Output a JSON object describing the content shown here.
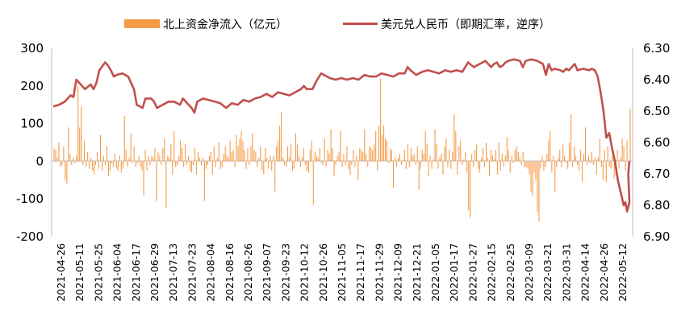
{
  "chart_data": {
    "type": "bar+line",
    "legend": {
      "position": "top",
      "items": [
        {
          "label": "北上资金净流入（亿元）",
          "color": "#F59A45",
          "kind": "bar"
        },
        {
          "label": "美元兑人民币（即期汇率，逆序）",
          "color": "#C0504D",
          "kind": "line"
        }
      ]
    },
    "y_left": {
      "ticks": [
        "300",
        "200",
        "100",
        "0",
        "-100",
        "-200"
      ],
      "range": [
        -200,
        300
      ]
    },
    "y_right": {
      "ticks": [
        "6.30",
        "6.40",
        "6.50",
        "6.60",
        "6.70",
        "6.80",
        "6.90"
      ],
      "range": [
        6.3,
        6.9
      ],
      "inverted": true
    },
    "x_tick_labels": [
      "2021-04-26",
      "2021-05-11",
      "2021-05-25",
      "2021-06-04",
      "2021-06-17",
      "2021-06-29",
      "2021-07-13",
      "2021-07-23",
      "2021-08-04",
      "2021-08-16",
      "2021-08-26",
      "2021-09-07",
      "2021-09-23",
      "2021-10-12",
      "2021-10-26",
      "2021-11-05",
      "2021-11-17",
      "2021-11-29",
      "2021-12-09",
      "2021-12-21",
      "2022-01-05",
      "2022-01-17",
      "2022-01-27",
      "2022-02-15",
      "2022-02-25",
      "2022-03-09",
      "2022-03-21",
      "2022-03-31",
      "2022-04-14",
      "2022-04-26",
      "2022-05-12"
    ],
    "bar_colors": {
      "positive": "#F59A45",
      "negative": "#F59A45"
    },
    "line_color": "#C0504D",
    "bars_net_inflow_100m_cny": [
      35,
      30,
      10,
      50,
      -15,
      -10,
      40,
      -50,
      -60,
      90,
      20,
      -10,
      10,
      -5,
      15,
      200,
      90,
      145,
      -10,
      55,
      -15,
      25,
      -20,
      10,
      -25,
      -35,
      -10,
      25,
      -20,
      70,
      -25,
      15,
      -10,
      40,
      -40,
      -25,
      -5,
      -15,
      20,
      -20,
      -25,
      15,
      -30,
      -20,
      120,
      30,
      -15,
      10,
      75,
      -5,
      40,
      -15,
      -5,
      15,
      -15,
      -25,
      -90,
      30,
      -25,
      15,
      -10,
      15,
      10,
      35,
      -105,
      25,
      15,
      -10,
      35,
      60,
      -125,
      15,
      10,
      45,
      -35,
      80,
      -15,
      -10,
      15,
      55,
      35,
      -15,
      45,
      -10,
      15,
      -25,
      -30,
      -10,
      35,
      -35,
      25,
      10,
      -10,
      10,
      -105,
      -20,
      -10,
      15,
      25,
      -35,
      40,
      -15,
      10,
      50,
      -20,
      -15,
      20,
      40,
      15,
      10,
      55,
      25,
      30,
      -15,
      70,
      40,
      60,
      80,
      55,
      30,
      -20,
      35,
      -10,
      40,
      75,
      30,
      25,
      -15,
      10,
      40,
      -25,
      -35,
      35,
      10,
      -20,
      15,
      -25,
      15,
      -80,
      40,
      55,
      95,
      130,
      10,
      -10,
      -15,
      40,
      10,
      45,
      -25,
      -20,
      75,
      45,
      15,
      -15,
      10,
      35,
      -10,
      -25,
      -30,
      30,
      55,
      -115,
      25,
      15,
      10,
      35,
      -5,
      -10,
      60,
      -15,
      30,
      20,
      85,
      35,
      -40,
      -10,
      15,
      25,
      80,
      -15,
      20,
      -10,
      40,
      -20,
      -35,
      -10,
      30,
      -15,
      15,
      -50,
      35,
      30,
      25,
      85,
      20,
      -15,
      40,
      35,
      30,
      45,
      80,
      -25,
      95,
      220,
      70,
      95,
      60,
      55,
      -5,
      35,
      30,
      -70,
      10,
      -15,
      10,
      20,
      -10,
      5,
      30,
      -20,
      45,
      -15,
      35,
      15,
      20,
      -10,
      40,
      -75,
      -20,
      30,
      20,
      80,
      45,
      -40,
      15,
      -20,
      5,
      85,
      45,
      -20,
      10,
      20,
      -35,
      40,
      60,
      -15,
      30,
      -20,
      25,
      125,
      80,
      -35,
      40,
      55,
      -10,
      5,
      25,
      -30,
      -130,
      -150,
      20,
      -15,
      30,
      45,
      -20,
      -30,
      10,
      35,
      -15,
      50,
      10,
      -40,
      30,
      15,
      5,
      30,
      -35,
      50,
      -25,
      20,
      -15,
      15,
      65,
      30,
      -30,
      15,
      -5,
      30,
      40,
      25,
      10,
      -10,
      25,
      -15,
      -15,
      -20,
      -35,
      -80,
      -90,
      -30,
      -50,
      -135,
      -160,
      -20,
      15,
      -25,
      -15,
      20,
      55,
      80,
      -30,
      15,
      -80,
      -15,
      10,
      30,
      -15,
      45,
      15,
      -5,
      -20,
      50,
      125,
      -15,
      40,
      15,
      -10,
      -25,
      30,
      -55,
      20,
      90,
      -10,
      15,
      -5,
      25,
      -10,
      10,
      -35,
      10,
      60,
      -15,
      -50,
      30,
      -55,
      40,
      -15,
      -20,
      15,
      -45,
      -35,
      30,
      -20,
      10,
      60,
      40,
      -25,
      55,
      -15,
      140
    ]
  }
}
